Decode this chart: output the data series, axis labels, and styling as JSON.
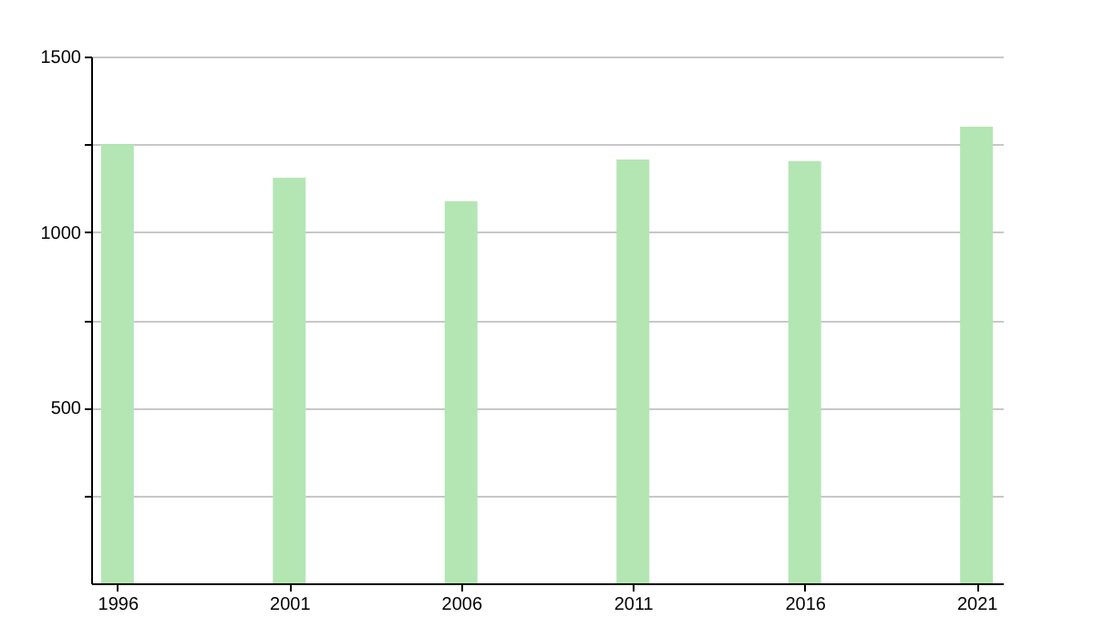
{
  "chart_data": {
    "type": "bar",
    "x": [
      1996,
      2001,
      2006,
      2011,
      2016,
      2021
    ],
    "values": [
      1250,
      1155,
      1088,
      1207,
      1202,
      1300
    ],
    "color": "#b3e6b3",
    "xlim": [
      1995.5,
      2021.5
    ],
    "xticks": [
      1996,
      2001,
      2006,
      2011,
      2016,
      2021
    ],
    "ylim": [
      0,
      1500
    ],
    "yticks": [
      {
        "value": 250,
        "label": null
      },
      500,
      {
        "value": 750,
        "label": null
      },
      1000,
      {
        "value": 1250,
        "label": null
      },
      1500
    ],
    "grid": "y"
  }
}
